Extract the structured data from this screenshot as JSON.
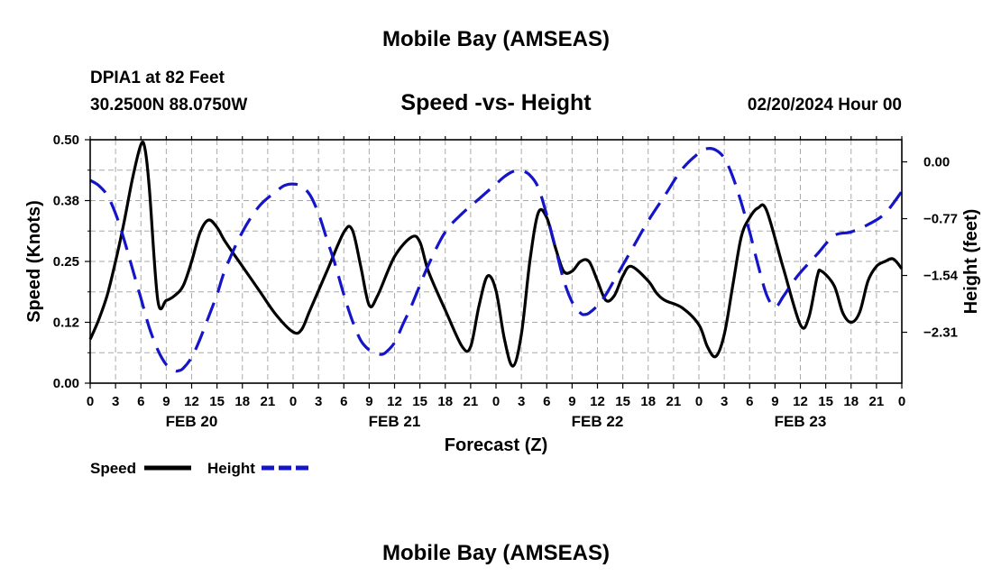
{
  "page": {
    "title_top": "Mobile Bay (AMSEAS)",
    "title_bottom": "Mobile Bay (AMSEAS)",
    "station": "DPIA1 at 82 Feet",
    "coords": "30.2500N  88.0750W",
    "subtitle": "Speed -vs- Height",
    "datetime": "02/20/2024 Hour 00"
  },
  "chart_data": {
    "type": "line",
    "title": "Speed -vs- Height",
    "xlabel": "Forecast (Z)",
    "ylabel": "Speed (Knots)",
    "y2label": "Height (feet)",
    "xlim": [
      0,
      96
    ],
    "ylim": [
      0,
      0.5
    ],
    "y2lim": [
      -3.0,
      0.3
    ],
    "yticks": [
      {
        "v": 0,
        "label": "0.00"
      },
      {
        "v": 0.125,
        "label": "0.12"
      },
      {
        "v": 0.25,
        "label": "0.25"
      },
      {
        "v": 0.375,
        "label": "0.38"
      },
      {
        "v": 0.5,
        "label": "0.50"
      }
    ],
    "y2ticks": [
      {
        "v": 0.0,
        "label": "0.00"
      },
      {
        "v": -0.77,
        "label": "−0.77"
      },
      {
        "v": -1.54,
        "label": "−1.54"
      },
      {
        "v": -2.31,
        "label": "−2.31"
      }
    ],
    "xtick_labels": [
      "0",
      "3",
      "6",
      "9",
      "12",
      "15",
      "18",
      "21",
      "0",
      "3",
      "6",
      "9",
      "12",
      "15",
      "18",
      "21",
      "0",
      "3",
      "6",
      "9",
      "12",
      "15",
      "18",
      "21",
      "0",
      "3",
      "6",
      "9",
      "12",
      "15",
      "18",
      "21",
      "0"
    ],
    "date_labels": [
      {
        "hour": 12,
        "label": "FEB 20"
      },
      {
        "hour": 36,
        "label": "FEB 21"
      },
      {
        "hour": 60,
        "label": "FEB 22"
      },
      {
        "hour": 84,
        "label": "FEB 23"
      }
    ],
    "grid": true,
    "colors": {
      "speed": "#000000",
      "height": "#1414c8",
      "grid": "#aaaaaa"
    },
    "legend": [
      {
        "name": "Speed",
        "style": "solid",
        "color": "#000000"
      },
      {
        "name": "Height",
        "style": "dashed",
        "color": "#1414c8"
      }
    ],
    "series": [
      {
        "name": "Speed",
        "axis": "left",
        "x": [
          0,
          1,
          2,
          3,
          4,
          5,
          6,
          6.5,
          7,
          8,
          9,
          10,
          11,
          12,
          13,
          14,
          15,
          16,
          18,
          20,
          22,
          24,
          25,
          26,
          28,
          30,
          31,
          32,
          33,
          34,
          36,
          38,
          39,
          40,
          42,
          44,
          45,
          46,
          47,
          48,
          49,
          50,
          51,
          52,
          53,
          54,
          55,
          56,
          57,
          58,
          59,
          60,
          61,
          62,
          63,
          64,
          66,
          67,
          68,
          70,
          72,
          73,
          74,
          75,
          76,
          77,
          78,
          79,
          80,
          82,
          84,
          85,
          86,
          86.5,
          88,
          89,
          90,
          91,
          92,
          93,
          94,
          95,
          96
        ],
        "y": [
          0.09,
          0.13,
          0.18,
          0.25,
          0.33,
          0.42,
          0.49,
          0.48,
          0.4,
          0.17,
          0.17,
          0.18,
          0.2,
          0.25,
          0.31,
          0.335,
          0.32,
          0.29,
          0.24,
          0.19,
          0.14,
          0.105,
          0.11,
          0.15,
          0.23,
          0.31,
          0.315,
          0.24,
          0.16,
          0.18,
          0.26,
          0.3,
          0.29,
          0.23,
          0.15,
          0.075,
          0.075,
          0.16,
          0.22,
          0.19,
          0.09,
          0.035,
          0.1,
          0.25,
          0.35,
          0.34,
          0.28,
          0.23,
          0.23,
          0.25,
          0.25,
          0.21,
          0.17,
          0.18,
          0.22,
          0.24,
          0.21,
          0.185,
          0.17,
          0.155,
          0.12,
          0.075,
          0.055,
          0.1,
          0.2,
          0.3,
          0.34,
          0.36,
          0.355,
          0.235,
          0.12,
          0.135,
          0.22,
          0.23,
          0.2,
          0.145,
          0.125,
          0.145,
          0.21,
          0.24,
          0.25,
          0.255,
          0.235
        ]
      },
      {
        "name": "Height",
        "axis": "right",
        "x": [
          0,
          1,
          2,
          3,
          4,
          5,
          6,
          7,
          8,
          9,
          10,
          10.5,
          11,
          12,
          13,
          14,
          15,
          16,
          18,
          20,
          22,
          23,
          24,
          25,
          26,
          27,
          28,
          29,
          30,
          31,
          32,
          33,
          34,
          34.5,
          35,
          36,
          37,
          38,
          40,
          42,
          44,
          46,
          48,
          49,
          50,
          51,
          52,
          53,
          54,
          55,
          56,
          57,
          58,
          58.5,
          59,
          60,
          61,
          62,
          64,
          66,
          68,
          70,
          72,
          73,
          74,
          75,
          76,
          77,
          78,
          79,
          80,
          81,
          82,
          83,
          84,
          86,
          88,
          90,
          92,
          94,
          96
        ],
        "y": [
          -0.25,
          -0.32,
          -0.45,
          -0.7,
          -1.05,
          -1.45,
          -1.85,
          -2.25,
          -2.55,
          -2.75,
          -2.83,
          -2.83,
          -2.8,
          -2.65,
          -2.4,
          -2.1,
          -1.8,
          -1.45,
          -0.95,
          -0.6,
          -0.4,
          -0.32,
          -0.3,
          -0.33,
          -0.45,
          -0.7,
          -1.05,
          -1.4,
          -1.8,
          -2.15,
          -2.42,
          -2.55,
          -2.6,
          -2.61,
          -2.58,
          -2.45,
          -2.2,
          -1.95,
          -1.4,
          -0.95,
          -0.7,
          -0.5,
          -0.3,
          -0.2,
          -0.13,
          -0.12,
          -0.18,
          -0.35,
          -0.72,
          -1.15,
          -1.6,
          -1.9,
          -2.05,
          -2.07,
          -2.05,
          -1.95,
          -1.8,
          -1.6,
          -1.2,
          -0.8,
          -0.45,
          -0.1,
          0.12,
          0.18,
          0.16,
          0.05,
          -0.2,
          -0.55,
          -0.95,
          -1.4,
          -1.8,
          -1.97,
          -1.82,
          -1.65,
          -1.5,
          -1.25,
          -1.0,
          -0.95,
          -0.85,
          -0.7,
          -0.4
        ]
      }
    ]
  }
}
